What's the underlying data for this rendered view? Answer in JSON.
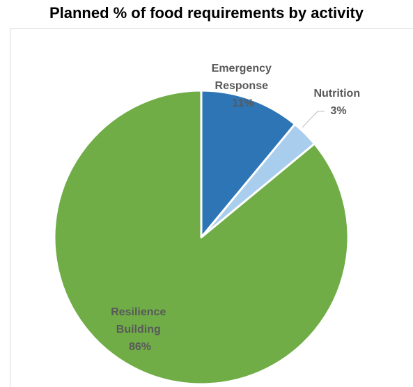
{
  "chart_data": {
    "type": "pie",
    "title": "Planned % of food requirements by activity",
    "slices": [
      {
        "label_lines": [
          "Emergency",
          "Response"
        ],
        "value_label": "11%",
        "value": 11,
        "color": "#2e75b6"
      },
      {
        "label_lines": [
          "Nutrition"
        ],
        "value_label": "3%",
        "value": 3,
        "color": "#a9cdec"
      },
      {
        "label_lines": [
          "Resilience",
          "Building"
        ],
        "value_label": "86%",
        "value": 86,
        "color": "#70ad47"
      }
    ],
    "legend": "none",
    "slice_border_color": "#ffffff"
  }
}
